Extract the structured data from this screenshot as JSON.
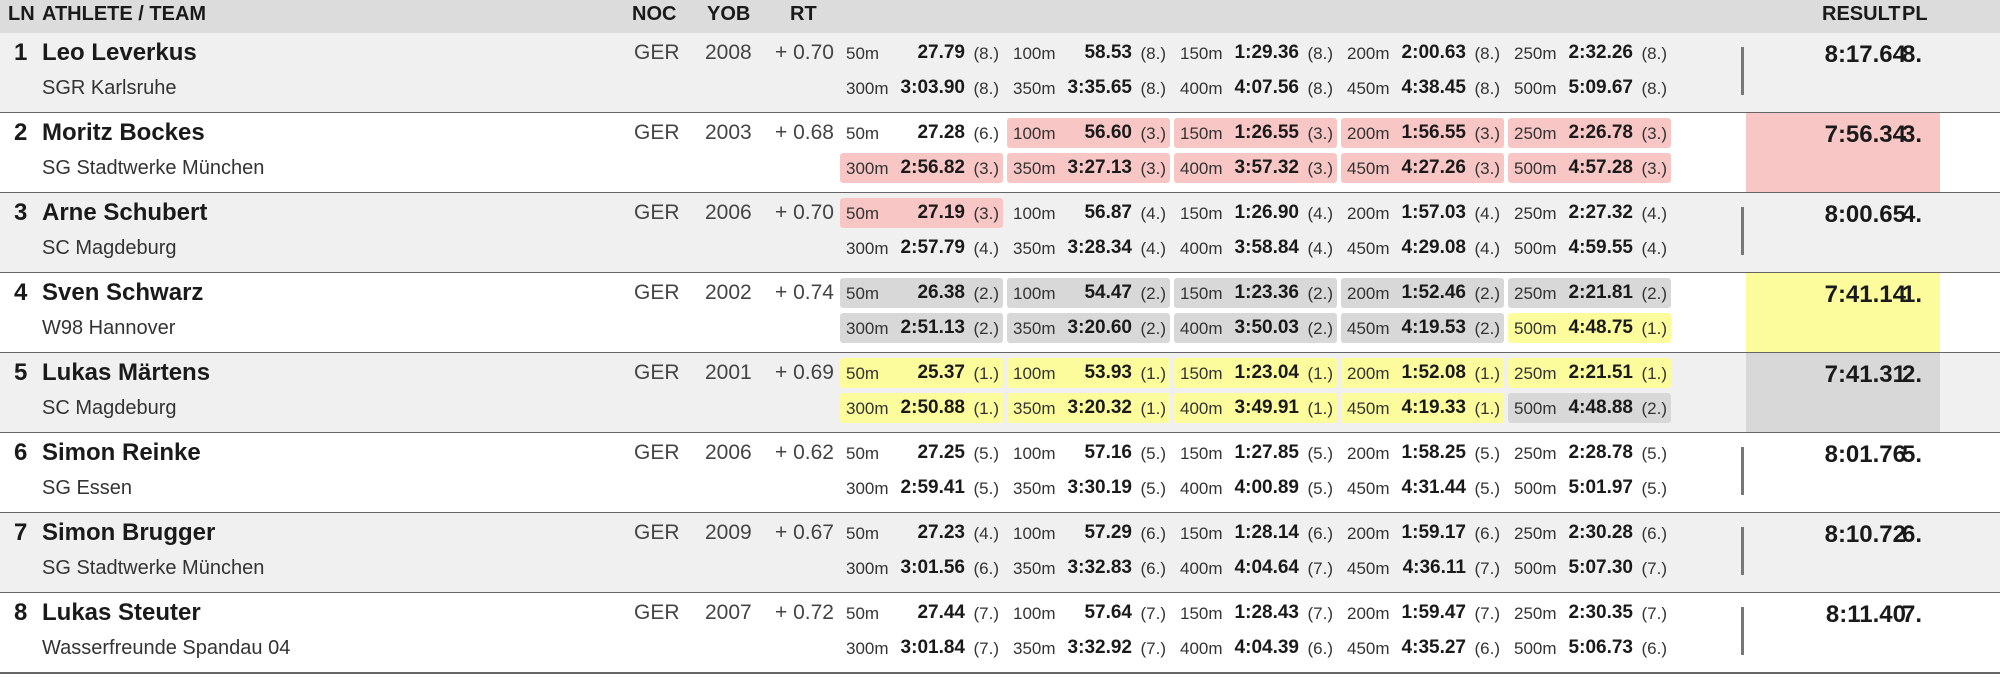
{
  "headers": {
    "ln": "LN",
    "athlete": "ATHLETE / TEAM",
    "noc": "NOC",
    "yob": "YOB",
    "rt": "RT",
    "result": "RESULT",
    "pl": "PL"
  },
  "highlight_colors": {
    "pink": "#f9c6c6",
    "gray": "#d8d8d8",
    "yellow": "#fcfc9c"
  },
  "rows": [
    {
      "ln": "1",
      "name": "Leo Leverkus",
      "team": "SGR Karlsruhe",
      "noc": "GER",
      "yob": "2008",
      "rt": "+ 0.70",
      "result": "8:17.64",
      "pl": "8.",
      "result_hl": "",
      "splits": [
        {
          "d": "50m",
          "t": "27.79",
          "r": "(8.)",
          "hl": ""
        },
        {
          "d": "100m",
          "t": "58.53",
          "r": "(8.)",
          "hl": ""
        },
        {
          "d": "150m",
          "t": "1:29.36",
          "r": "(8.)",
          "hl": ""
        },
        {
          "d": "200m",
          "t": "2:00.63",
          "r": "(8.)",
          "hl": ""
        },
        {
          "d": "250m",
          "t": "2:32.26",
          "r": "(8.)",
          "hl": ""
        },
        {
          "d": "300m",
          "t": "3:03.90",
          "r": "(8.)",
          "hl": ""
        },
        {
          "d": "350m",
          "t": "3:35.65",
          "r": "(8.)",
          "hl": ""
        },
        {
          "d": "400m",
          "t": "4:07.56",
          "r": "(8.)",
          "hl": ""
        },
        {
          "d": "450m",
          "t": "4:38.45",
          "r": "(8.)",
          "hl": ""
        },
        {
          "d": "500m",
          "t": "5:09.67",
          "r": "(8.)",
          "hl": ""
        }
      ]
    },
    {
      "ln": "2",
      "name": "Moritz Bockes",
      "team": "SG Stadtwerke München",
      "noc": "GER",
      "yob": "2003",
      "rt": "+ 0.68",
      "result": "7:56.34",
      "pl": "3.",
      "result_hl": "pink",
      "splits": [
        {
          "d": "50m",
          "t": "27.28",
          "r": "(6.)",
          "hl": ""
        },
        {
          "d": "100m",
          "t": "56.60",
          "r": "(3.)",
          "hl": "pink"
        },
        {
          "d": "150m",
          "t": "1:26.55",
          "r": "(3.)",
          "hl": "pink"
        },
        {
          "d": "200m",
          "t": "1:56.55",
          "r": "(3.)",
          "hl": "pink"
        },
        {
          "d": "250m",
          "t": "2:26.78",
          "r": "(3.)",
          "hl": "pink"
        },
        {
          "d": "300m",
          "t": "2:56.82",
          "r": "(3.)",
          "hl": "pink"
        },
        {
          "d": "350m",
          "t": "3:27.13",
          "r": "(3.)",
          "hl": "pink"
        },
        {
          "d": "400m",
          "t": "3:57.32",
          "r": "(3.)",
          "hl": "pink"
        },
        {
          "d": "450m",
          "t": "4:27.26",
          "r": "(3.)",
          "hl": "pink"
        },
        {
          "d": "500m",
          "t": "4:57.28",
          "r": "(3.)",
          "hl": "pink"
        }
      ]
    },
    {
      "ln": "3",
      "name": "Arne Schubert",
      "team": "SC Magdeburg",
      "noc": "GER",
      "yob": "2006",
      "rt": "+ 0.70",
      "result": "8:00.65",
      "pl": "4.",
      "result_hl": "",
      "splits": [
        {
          "d": "50m",
          "t": "27.19",
          "r": "(3.)",
          "hl": "pink"
        },
        {
          "d": "100m",
          "t": "56.87",
          "r": "(4.)",
          "hl": ""
        },
        {
          "d": "150m",
          "t": "1:26.90",
          "r": "(4.)",
          "hl": ""
        },
        {
          "d": "200m",
          "t": "1:57.03",
          "r": "(4.)",
          "hl": ""
        },
        {
          "d": "250m",
          "t": "2:27.32",
          "r": "(4.)",
          "hl": ""
        },
        {
          "d": "300m",
          "t": "2:57.79",
          "r": "(4.)",
          "hl": ""
        },
        {
          "d": "350m",
          "t": "3:28.34",
          "r": "(4.)",
          "hl": ""
        },
        {
          "d": "400m",
          "t": "3:58.84",
          "r": "(4.)",
          "hl": ""
        },
        {
          "d": "450m",
          "t": "4:29.08",
          "r": "(4.)",
          "hl": ""
        },
        {
          "d": "500m",
          "t": "4:59.55",
          "r": "(4.)",
          "hl": ""
        }
      ]
    },
    {
      "ln": "4",
      "name": "Sven Schwarz",
      "team": "W98 Hannover",
      "noc": "GER",
      "yob": "2002",
      "rt": "+ 0.74",
      "result": "7:41.14",
      "pl": "1.",
      "result_hl": "yellow",
      "splits": [
        {
          "d": "50m",
          "t": "26.38",
          "r": "(2.)",
          "hl": "gray"
        },
        {
          "d": "100m",
          "t": "54.47",
          "r": "(2.)",
          "hl": "gray"
        },
        {
          "d": "150m",
          "t": "1:23.36",
          "r": "(2.)",
          "hl": "gray"
        },
        {
          "d": "200m",
          "t": "1:52.46",
          "r": "(2.)",
          "hl": "gray"
        },
        {
          "d": "250m",
          "t": "2:21.81",
          "r": "(2.)",
          "hl": "gray"
        },
        {
          "d": "300m",
          "t": "2:51.13",
          "r": "(2.)",
          "hl": "gray"
        },
        {
          "d": "350m",
          "t": "3:20.60",
          "r": "(2.)",
          "hl": "gray"
        },
        {
          "d": "400m",
          "t": "3:50.03",
          "r": "(2.)",
          "hl": "gray"
        },
        {
          "d": "450m",
          "t": "4:19.53",
          "r": "(2.)",
          "hl": "gray"
        },
        {
          "d": "500m",
          "t": "4:48.75",
          "r": "(1.)",
          "hl": "yellow"
        }
      ]
    },
    {
      "ln": "5",
      "name": "Lukas Märtens",
      "team": "SC Magdeburg",
      "noc": "GER",
      "yob": "2001",
      "rt": "+ 0.69",
      "result": "7:41.31",
      "pl": "2.",
      "result_hl": "gray",
      "splits": [
        {
          "d": "50m",
          "t": "25.37",
          "r": "(1.)",
          "hl": "yellow"
        },
        {
          "d": "100m",
          "t": "53.93",
          "r": "(1.)",
          "hl": "yellow"
        },
        {
          "d": "150m",
          "t": "1:23.04",
          "r": "(1.)",
          "hl": "yellow"
        },
        {
          "d": "200m",
          "t": "1:52.08",
          "r": "(1.)",
          "hl": "yellow"
        },
        {
          "d": "250m",
          "t": "2:21.51",
          "r": "(1.)",
          "hl": "yellow"
        },
        {
          "d": "300m",
          "t": "2:50.88",
          "r": "(1.)",
          "hl": "yellow"
        },
        {
          "d": "350m",
          "t": "3:20.32",
          "r": "(1.)",
          "hl": "yellow"
        },
        {
          "d": "400m",
          "t": "3:49.91",
          "r": "(1.)",
          "hl": "yellow"
        },
        {
          "d": "450m",
          "t": "4:19.33",
          "r": "(1.)",
          "hl": "yellow"
        },
        {
          "d": "500m",
          "t": "4:48.88",
          "r": "(2.)",
          "hl": "gray"
        }
      ]
    },
    {
      "ln": "6",
      "name": "Simon Reinke",
      "team": "SG Essen",
      "noc": "GER",
      "yob": "2006",
      "rt": "+ 0.62",
      "result": "8:01.76",
      "pl": "5.",
      "result_hl": "",
      "splits": [
        {
          "d": "50m",
          "t": "27.25",
          "r": "(5.)",
          "hl": ""
        },
        {
          "d": "100m",
          "t": "57.16",
          "r": "(5.)",
          "hl": ""
        },
        {
          "d": "150m",
          "t": "1:27.85",
          "r": "(5.)",
          "hl": ""
        },
        {
          "d": "200m",
          "t": "1:58.25",
          "r": "(5.)",
          "hl": ""
        },
        {
          "d": "250m",
          "t": "2:28.78",
          "r": "(5.)",
          "hl": ""
        },
        {
          "d": "300m",
          "t": "2:59.41",
          "r": "(5.)",
          "hl": ""
        },
        {
          "d": "350m",
          "t": "3:30.19",
          "r": "(5.)",
          "hl": ""
        },
        {
          "d": "400m",
          "t": "4:00.89",
          "r": "(5.)",
          "hl": ""
        },
        {
          "d": "450m",
          "t": "4:31.44",
          "r": "(5.)",
          "hl": ""
        },
        {
          "d": "500m",
          "t": "5:01.97",
          "r": "(5.)",
          "hl": ""
        }
      ]
    },
    {
      "ln": "7",
      "name": "Simon Brugger",
      "team": "SG Stadtwerke München",
      "noc": "GER",
      "yob": "2009",
      "rt": "+ 0.67",
      "result": "8:10.72",
      "pl": "6.",
      "result_hl": "",
      "splits": [
        {
          "d": "50m",
          "t": "27.23",
          "r": "(4.)",
          "hl": ""
        },
        {
          "d": "100m",
          "t": "57.29",
          "r": "(6.)",
          "hl": ""
        },
        {
          "d": "150m",
          "t": "1:28.14",
          "r": "(6.)",
          "hl": ""
        },
        {
          "d": "200m",
          "t": "1:59.17",
          "r": "(6.)",
          "hl": ""
        },
        {
          "d": "250m",
          "t": "2:30.28",
          "r": "(6.)",
          "hl": ""
        },
        {
          "d": "300m",
          "t": "3:01.56",
          "r": "(6.)",
          "hl": ""
        },
        {
          "d": "350m",
          "t": "3:32.83",
          "r": "(6.)",
          "hl": ""
        },
        {
          "d": "400m",
          "t": "4:04.64",
          "r": "(7.)",
          "hl": ""
        },
        {
          "d": "450m",
          "t": "4:36.11",
          "r": "(7.)",
          "hl": ""
        },
        {
          "d": "500m",
          "t": "5:07.30",
          "r": "(7.)",
          "hl": ""
        }
      ]
    },
    {
      "ln": "8",
      "name": "Lukas Steuter",
      "team": "Wasserfreunde Spandau 04",
      "noc": "GER",
      "yob": "2007",
      "rt": "+ 0.72",
      "result": "8:11.40",
      "pl": "7.",
      "result_hl": "",
      "splits": [
        {
          "d": "50m",
          "t": "27.44",
          "r": "(7.)",
          "hl": ""
        },
        {
          "d": "100m",
          "t": "57.64",
          "r": "(7.)",
          "hl": ""
        },
        {
          "d": "150m",
          "t": "1:28.43",
          "r": "(7.)",
          "hl": ""
        },
        {
          "d": "200m",
          "t": "1:59.47",
          "r": "(7.)",
          "hl": ""
        },
        {
          "d": "250m",
          "t": "2:30.35",
          "r": "(7.)",
          "hl": ""
        },
        {
          "d": "300m",
          "t": "3:01.84",
          "r": "(7.)",
          "hl": ""
        },
        {
          "d": "350m",
          "t": "3:32.92",
          "r": "(7.)",
          "hl": ""
        },
        {
          "d": "400m",
          "t": "4:04.39",
          "r": "(6.)",
          "hl": ""
        },
        {
          "d": "450m",
          "t": "4:35.27",
          "r": "(6.)",
          "hl": ""
        },
        {
          "d": "500m",
          "t": "5:06.73",
          "r": "(6.)",
          "hl": ""
        }
      ]
    }
  ]
}
